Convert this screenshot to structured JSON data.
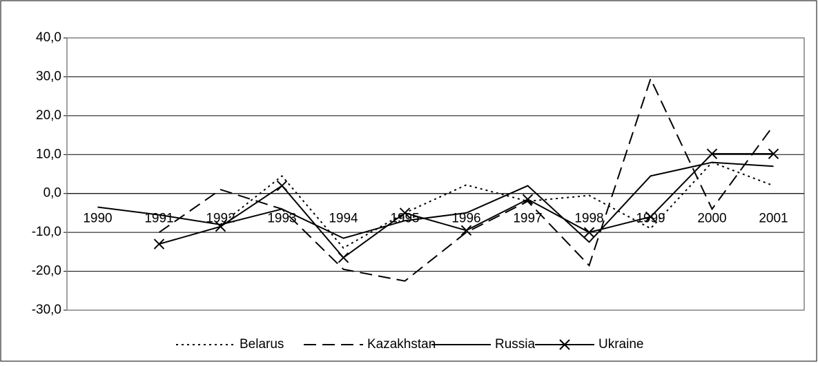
{
  "chart_data": {
    "type": "line",
    "categories": [
      "1990",
      "1991",
      "1992",
      "1993",
      "1994",
      "1995",
      "1996",
      "1997",
      "1998",
      "1999",
      "2000",
      "2001"
    ],
    "series": [
      {
        "name": "Belarus",
        "color": "#000000",
        "dash": "dotted",
        "values": [
          null,
          null,
          -8,
          4.5,
          -14,
          -5,
          2.2,
          -2,
          -0.5,
          -9,
          8,
          2
        ]
      },
      {
        "name": "Kazakhstan",
        "color": "#000000",
        "dash": "dashed",
        "values": [
          null,
          -10,
          1,
          -4,
          -19.5,
          -22.5,
          -10,
          -2,
          -18.5,
          29.5,
          -4,
          17.5
        ]
      },
      {
        "name": "Russia",
        "color": "#000000",
        "dash": "solid",
        "values": [
          -3.5,
          -5.5,
          -8,
          -4,
          -11.5,
          -7,
          -5,
          2,
          -12.5,
          4.5,
          8,
          7
        ]
      },
      {
        "name": "Ukraine",
        "color": "#000000",
        "dash": "solid",
        "marker": "x",
        "values": [
          null,
          -13,
          -8.5,
          2,
          -16.5,
          -5,
          -9.5,
          -1.5,
          -10,
          -6,
          10.2,
          10.2
        ]
      }
    ],
    "ylim": [
      -30,
      40
    ],
    "yticks": [
      {
        "value": -30,
        "label": "-30,0"
      },
      {
        "value": -20,
        "label": "-20,0"
      },
      {
        "value": -10,
        "label": "-10,0"
      },
      {
        "value": 0,
        "label": "0,0"
      },
      {
        "value": 10,
        "label": "10,0"
      },
      {
        "value": 20,
        "label": "20,0"
      },
      {
        "value": 30,
        "label": "30,0"
      },
      {
        "value": 40,
        "label": "40,0"
      }
    ],
    "grid": true,
    "legend": "bottom"
  }
}
